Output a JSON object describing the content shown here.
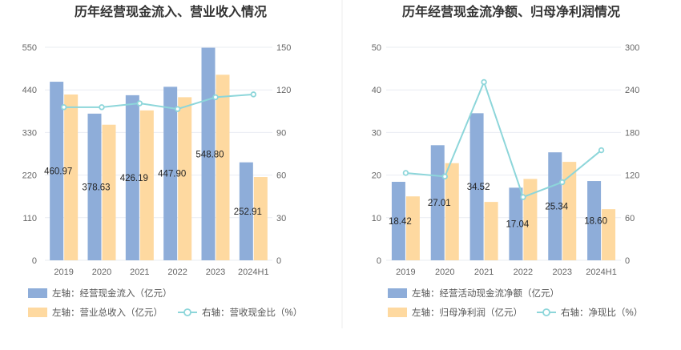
{
  "colors": {
    "bar_primary": "#8eadd9",
    "bar_secondary": "#fed9a0",
    "line": "#8dd6da",
    "grid": "#e9ecf2",
    "text": "#666666"
  },
  "chart_data": [
    {
      "type": "bar",
      "title": "历年经营现金流入、营业收入情况",
      "categories": [
        "2019",
        "2020",
        "2021",
        "2022",
        "2023",
        "2024H1"
      ],
      "left_axis": {
        "min": 0,
        "max": 550,
        "ticks": [
          "0",
          "110",
          "220",
          "330",
          "440",
          "550"
        ]
      },
      "right_axis": {
        "min": 0,
        "max": 150,
        "ticks": [
          "0",
          "30",
          "60",
          "90",
          "120",
          "150"
        ]
      },
      "series": [
        {
          "name": "左轴：经营现金流入（亿元）",
          "type": "bar",
          "axis": "left",
          "values": [
            460.97,
            378.63,
            426.19,
            447.9,
            548.8,
            252.91
          ],
          "labels": [
            "460.97",
            "378.63",
            "426.19",
            "447.90",
            "548.80",
            "252.91"
          ]
        },
        {
          "name": "左轴：营业总收入（亿元）",
          "type": "bar",
          "axis": "left",
          "values": [
            428,
            350,
            387,
            421,
            479,
            215
          ]
        },
        {
          "name": "右轴：营收现金比（%）",
          "type": "line",
          "axis": "right",
          "values": [
            107.8,
            107.8,
            110.5,
            106.5,
            114.8,
            116.8
          ]
        }
      ],
      "legend_position": "bottom",
      "grid": true
    },
    {
      "type": "bar",
      "title": "历年经营现金流净额、归母净利润情况",
      "categories": [
        "2019",
        "2020",
        "2021",
        "2022",
        "2023",
        "2024H1"
      ],
      "left_axis": {
        "min": 0,
        "max": 50,
        "ticks": [
          "0",
          "10",
          "20",
          "30",
          "40",
          "50"
        ]
      },
      "right_axis": {
        "min": 0,
        "max": 300,
        "ticks": [
          "0",
          "60",
          "120",
          "180",
          "240",
          "300"
        ]
      },
      "series": [
        {
          "name": "左轴：经营活动现金流净额（亿元）",
          "type": "bar",
          "axis": "left",
          "values": [
            18.42,
            27.01,
            34.52,
            17.04,
            25.34,
            18.6
          ],
          "labels": [
            "18.42",
            "27.01",
            "34.52",
            "17.04",
            "25.34",
            "18.60"
          ]
        },
        {
          "name": "左轴：归母净利润（亿元）",
          "type": "bar",
          "axis": "left",
          "values": [
            15.0,
            22.8,
            13.7,
            19.1,
            23.1,
            12.0
          ]
        },
        {
          "name": "右轴：净现比（%）",
          "type": "line",
          "axis": "right",
          "values": [
            123,
            118,
            251,
            89,
            110,
            155
          ]
        }
      ],
      "legend_position": "bottom",
      "grid": true
    }
  ]
}
